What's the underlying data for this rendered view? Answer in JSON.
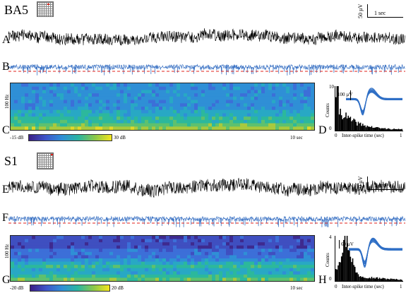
{
  "panels": [
    {
      "region_label": "BA5",
      "scale_amplitude": "50 µV",
      "scale_time": "1 sec",
      "labels": {
        "raw": "A",
        "filtered": "B",
        "spectrogram": "C",
        "isi": "D"
      },
      "spectrogram": {
        "freq_label": "100 Hz",
        "colorbar_min": "-15 dB",
        "colorbar_max": "30 dB",
        "duration": "10 sec"
      },
      "isi": {
        "y_max": "10",
        "y_min": "0",
        "ylabel": "Counts",
        "xlabel": "Inter-spike time (sec)",
        "x_min": "0",
        "x_max": "1",
        "waveform_scale": "100 µV"
      }
    },
    {
      "region_label": "S1",
      "scale_amplitude": "50 µV",
      "scale_time": "1 sec",
      "labels": {
        "raw": "E",
        "filtered": "F",
        "spectrogram": "G",
        "isi": "H"
      },
      "spectrogram": {
        "freq_label": "100 Hz",
        "colorbar_min": "-20 dB",
        "colorbar_max": "20 dB",
        "duration": "10 sec"
      },
      "isi": {
        "y_max": "4",
        "y_min": "0",
        "ylabel": "Counts",
        "xlabel": "Inter-spike time (sec)",
        "x_min": "0",
        "x_max": "1",
        "waveform_scale": "60 µV"
      }
    }
  ],
  "colors": {
    "raw_trace": "#000000",
    "filtered_trace": "#3a72c4",
    "threshold": "#e0221b",
    "waveform": "#2f6fc6"
  }
}
